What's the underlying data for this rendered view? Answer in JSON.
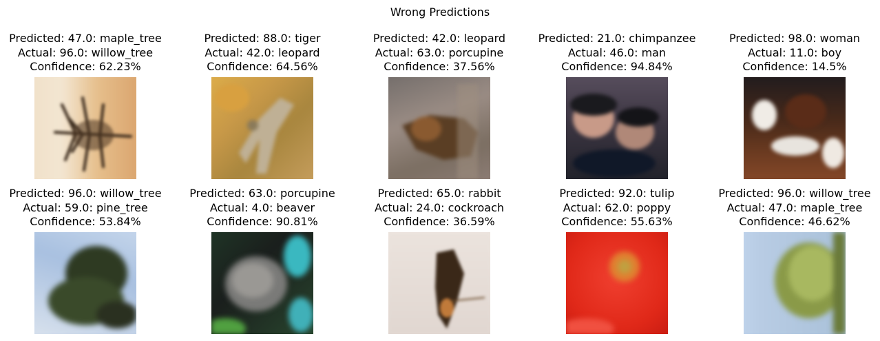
{
  "figure": {
    "title": "Wrong Predictions"
  },
  "predictions": [
    {
      "predicted": "Predicted: 47.0: maple_tree",
      "actual": "Actual: 96.0: willow_tree",
      "confidence": "Confidence: 62.23%",
      "image_subject": "tree silhouette on tan background"
    },
    {
      "predicted": "Predicted: 88.0: tiger",
      "actual": "Actual: 42.0: leopard",
      "confidence": "Confidence: 64.56%",
      "image_subject": "leopard on amber ground"
    },
    {
      "predicted": "Predicted: 42.0: leopard",
      "actual": "Actual: 63.0: porcupine",
      "confidence": "Confidence: 37.56%",
      "image_subject": "brown animal on grey-green ground"
    },
    {
      "predicted": "Predicted: 21.0: chimpanzee",
      "actual": "Actual: 46.0: man",
      "confidence": "Confidence: 94.84%",
      "image_subject": "people with dark hair"
    },
    {
      "predicted": "Predicted: 98.0: woman",
      "actual": "Actual: 11.0: boy",
      "confidence": "Confidence: 14.5%",
      "image_subject": "dark brown and white figure"
    },
    {
      "predicted": "Predicted: 96.0: willow_tree",
      "actual": "Actual: 59.0: pine_tree",
      "confidence": "Confidence: 53.84%",
      "image_subject": "dark pine tree against blue sky"
    },
    {
      "predicted": "Predicted: 63.0: porcupine",
      "actual": "Actual: 4.0: beaver",
      "confidence": "Confidence: 90.81%",
      "image_subject": "grey furry animal with teal and green"
    },
    {
      "predicted": "Predicted: 65.0: rabbit",
      "actual": "Actual: 24.0: cockroach",
      "confidence": "Confidence: 36.59%",
      "image_subject": "brown insect on pale background"
    },
    {
      "predicted": "Predicted: 92.0: tulip",
      "actual": "Actual: 62.0: poppy",
      "confidence": "Confidence: 55.63%",
      "image_subject": "red poppy flower"
    },
    {
      "predicted": "Predicted: 96.0: willow_tree",
      "actual": "Actual: 47.0: maple_tree",
      "confidence": "Confidence: 46.62%",
      "image_subject": "green tree against light blue sky"
    }
  ]
}
